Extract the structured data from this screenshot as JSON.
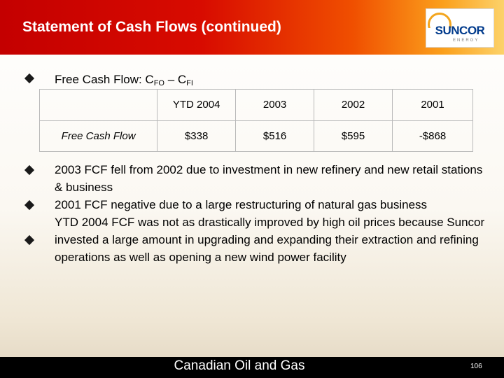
{
  "header": {
    "title": "Statement of Cash Flows (continued)",
    "logo": {
      "name": "SUNCOR",
      "sub": "ENERGY",
      "colors": {
        "blue": "#003a8c",
        "orange": "#f3a51d"
      }
    },
    "colors": {
      "red": "#c40000",
      "orange": "#f04f00",
      "yellow": "#fcd26a"
    }
  },
  "fcf_heading": {
    "text": "Free Cash Flow: C",
    "sub1": "FO",
    "dash": " – C",
    "sub2": "FI"
  },
  "table": {
    "columns": [
      "YTD 2004",
      "2003",
      "2002",
      "2001"
    ],
    "rows": [
      {
        "label": "Free Cash Flow",
        "values": [
          "$338",
          "$516",
          "$595",
          "-$868"
        ]
      }
    ]
  },
  "points": [
    "2003 FCF fell from 2002 due to investment in new refinery and new retail stations & business",
    "2001 FCF negative due to a large restructuring of natural gas business",
    "YTD 2004 FCF was not as drastically improved by high oil prices because Suncor invested a large amount in upgrading and expanding their extraction and refining operations as well as opening a new wind power facility"
  ],
  "footer": {
    "text": "Canadian Oil and Gas",
    "page": "106"
  }
}
